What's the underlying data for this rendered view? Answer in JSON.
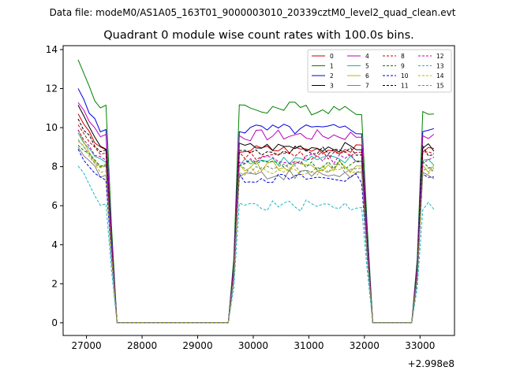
{
  "figure": {
    "suptitle": "Data file: modeM0/AS1A05_163T01_9000003010_20339cztM0_level2_quad_clean.evt"
  },
  "chart_data": {
    "type": "line",
    "title": "Quadrant 0 module wise count rates with 100.0s bins.",
    "xlabel": "",
    "ylabel": "",
    "x_offset_label": "+2.998e8",
    "xlim": [
      26580,
      33620
    ],
    "ylim": [
      -0.65,
      14.2
    ],
    "x_ticks": [
      27000,
      28000,
      29000,
      30000,
      31000,
      32000,
      33000
    ],
    "x_tick_labels": [
      "27000",
      "28000",
      "29000",
      "30000",
      "31000",
      "32000",
      "33000"
    ],
    "y_ticks": [
      0,
      2,
      4,
      6,
      8,
      10,
      12,
      14
    ],
    "y_tick_labels": [
      "0",
      "2",
      "4",
      "6",
      "8",
      "10",
      "12",
      "14"
    ],
    "grid": false,
    "legend_position": "top-right",
    "segments": [
      {
        "start": 26850,
        "end": 27550,
        "step": 100,
        "drop": true
      },
      {
        "start": 27550,
        "end": 29550,
        "step": 100,
        "zero": true
      },
      {
        "start": 29550,
        "end": 32150,
        "step": 100,
        "rise": true,
        "drop": true
      },
      {
        "start": 32150,
        "end": 32850,
        "step": 100,
        "zero": true
      },
      {
        "start": 32850,
        "end": 33250,
        "step": 100,
        "rise": true
      }
    ],
    "series": [
      {
        "name": "0",
        "color": "#cc0000",
        "dash": "solid",
        "level": 8.9,
        "start": 10.6,
        "noise": 0.25
      },
      {
        "name": "1",
        "color": "#008000",
        "dash": "solid",
        "level": 11.0,
        "start": 13.4,
        "noise": 0.35
      },
      {
        "name": "2",
        "color": "#0000dd",
        "dash": "solid",
        "level": 9.9,
        "start": 12.0,
        "noise": 0.3
      },
      {
        "name": "3",
        "color": "#000000",
        "dash": "solid",
        "level": 9.0,
        "start": 11.2,
        "noise": 0.25
      },
      {
        "name": "4",
        "color": "#bb00bb",
        "dash": "solid",
        "level": 9.6,
        "start": 11.4,
        "noise": 0.3
      },
      {
        "name": "5",
        "color": "#17b8a0",
        "dash": "solid",
        "level": 8.3,
        "start": 9.6,
        "noise": 0.3
      },
      {
        "name": "6",
        "color": "#b8b800",
        "dash": "solid",
        "level": 8.0,
        "start": 9.8,
        "noise": 0.3
      },
      {
        "name": "7",
        "color": "#808080",
        "dash": "solid",
        "level": 7.6,
        "start": 9.0,
        "noise": 0.3
      },
      {
        "name": "8",
        "color": "#cc0000",
        "dash": "dashed",
        "level": 8.6,
        "start": 10.2,
        "noise": 0.25
      },
      {
        "name": "9",
        "color": "#008000",
        "dash": "dashed",
        "level": 8.1,
        "start": 9.2,
        "noise": 0.25
      },
      {
        "name": "10",
        "color": "#0000dd",
        "dash": "dashed",
        "level": 7.4,
        "start": 8.8,
        "noise": 0.25
      },
      {
        "name": "11",
        "color": "#000000",
        "dash": "dashed",
        "level": 8.8,
        "start": 10.4,
        "noise": 0.25
      },
      {
        "name": "12",
        "color": "#bb00bb",
        "dash": "dashed",
        "level": 8.4,
        "start": 9.9,
        "noise": 0.25
      },
      {
        "name": "13",
        "color": "#17b8c0",
        "dash": "dashed",
        "level": 6.0,
        "start": 8.1,
        "noise": 0.3
      },
      {
        "name": "14",
        "color": "#b8b800",
        "dash": "dashed",
        "level": 7.8,
        "start": 9.4,
        "noise": 0.25
      },
      {
        "name": "15",
        "color": "#808080",
        "dash": "dashed",
        "level": 7.9,
        "start": 9.3,
        "noise": 0.25
      }
    ]
  }
}
